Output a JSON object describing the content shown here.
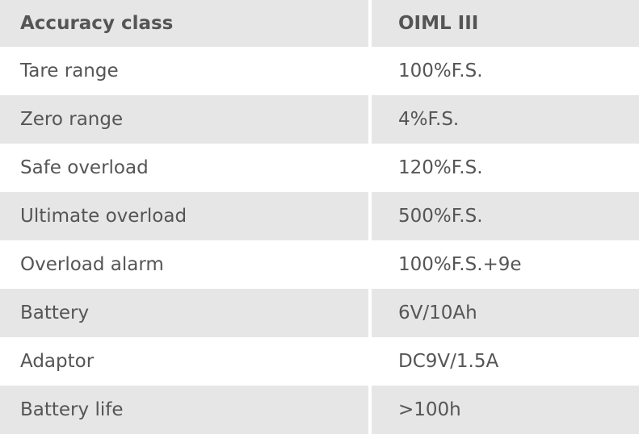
{
  "colors": {
    "row_alt": "#e6e6e6",
    "text": "#555555"
  },
  "header": {
    "label": "Accuracy class",
    "value": "OIML III"
  },
  "rows": [
    {
      "label": "Tare range",
      "value": "100%F.S."
    },
    {
      "label": "Zero range",
      "value": "4%F.S."
    },
    {
      "label": "Safe overload",
      "value": "120%F.S."
    },
    {
      "label": "Ultimate overload",
      "value": "500%F.S."
    },
    {
      "label": "Overload alarm",
      "value": "100%F.S.+9e"
    },
    {
      "label": "Battery",
      "value": "6V/10Ah"
    },
    {
      "label": "Adaptor",
      "value": "DC9V/1.5A"
    },
    {
      "label": "Battery life",
      "value": ">100h"
    }
  ]
}
